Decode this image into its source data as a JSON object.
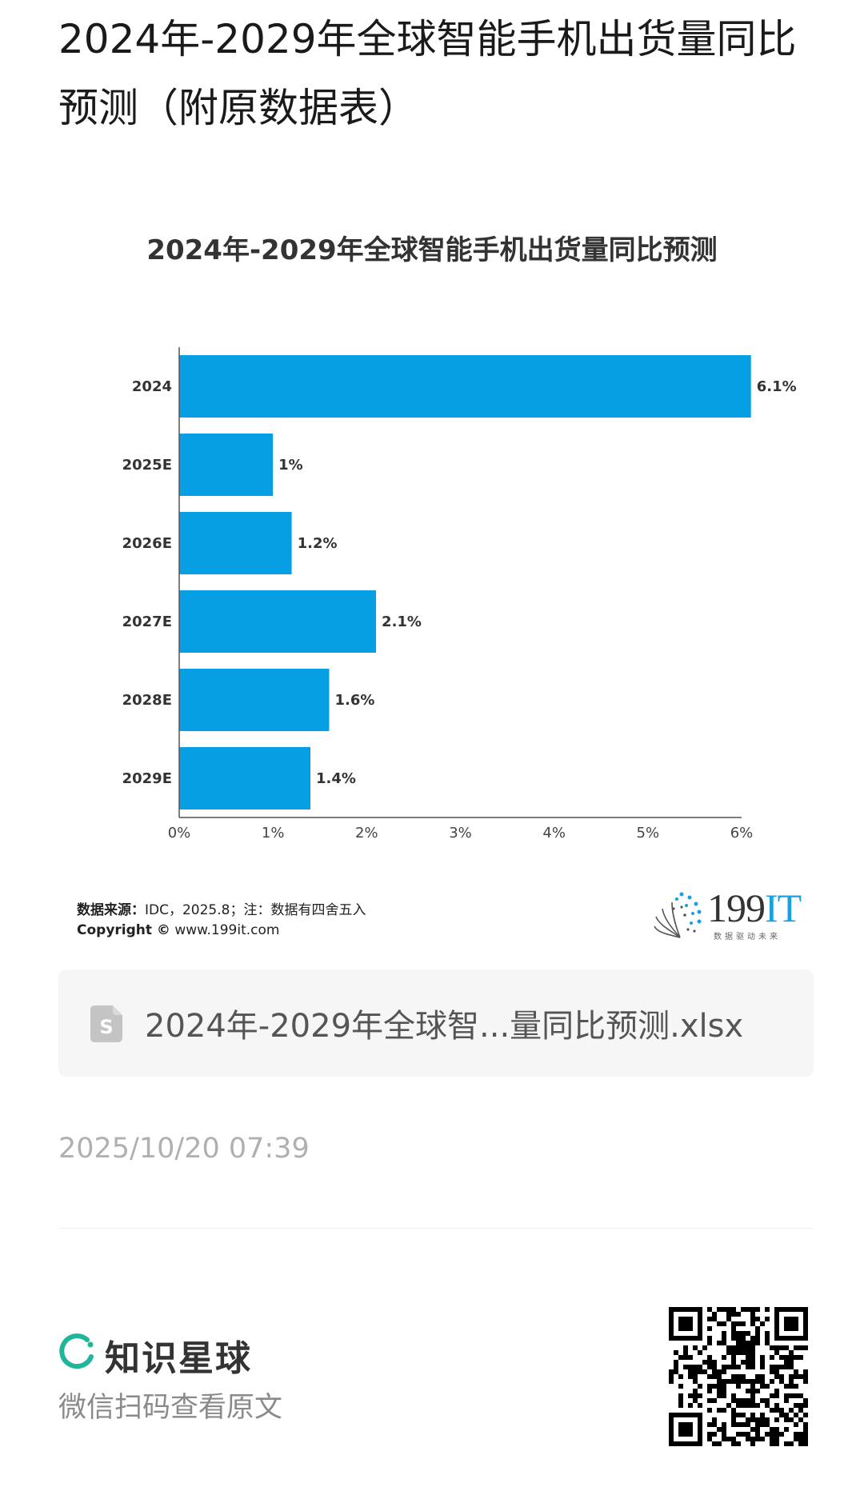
{
  "page": {
    "title": "2024年-2029年全球智能手机出货量同比预测（附原数据表）"
  },
  "chart_data": {
    "type": "bar",
    "orientation": "horizontal",
    "title": "2024年-2029年全球智能手机出货量同比预测",
    "categories": [
      "2024",
      "2025E",
      "2026E",
      "2027E",
      "2028E",
      "2029E"
    ],
    "values": [
      6.1,
      1,
      1.2,
      2.1,
      1.6,
      1.4
    ],
    "value_labels": [
      "6.1%",
      "1%",
      "1.2%",
      "2.1%",
      "1.6%",
      "1.4%"
    ],
    "xlim": [
      0,
      6
    ],
    "x_ticks": [
      "0%",
      "1%",
      "2%",
      "3%",
      "4%",
      "5%",
      "6%"
    ],
    "grid": false,
    "bar_color": "#069fe4"
  },
  "source": {
    "label": "数据来源：",
    "text": "IDC，2025.8；注：数据有四舍五入",
    "copyright_label": "Copyright ©",
    "copyright_site": "www.199it.com"
  },
  "logo": {
    "number": "199",
    "suffix": "IT",
    "slogan": "数据驱动未来"
  },
  "file": {
    "icon": "spreadsheet-file-icon",
    "name": "2024年-2029年全球智...量同比预测.xlsx"
  },
  "post": {
    "timestamp": "2025/10/20 07:39"
  },
  "footer": {
    "brand_name": "知识星球",
    "scan_hint": "微信扫码查看原文",
    "brand_color": "#1fb59b"
  }
}
